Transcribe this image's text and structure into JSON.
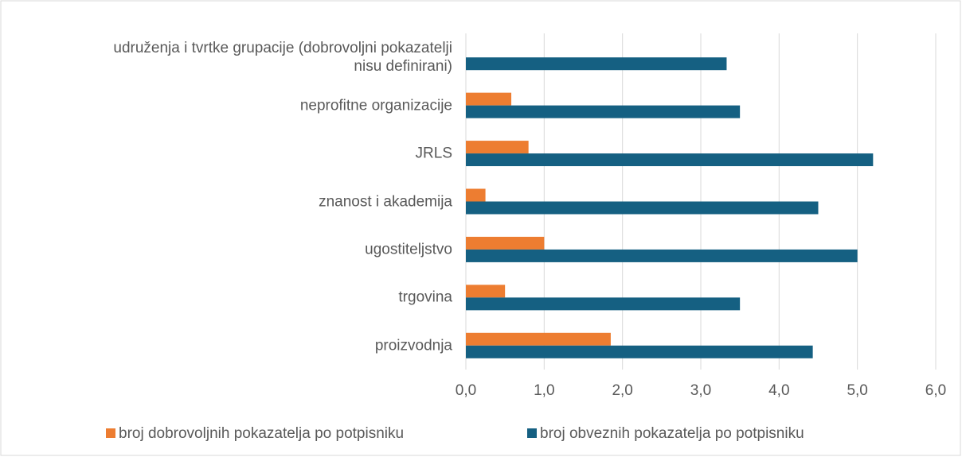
{
  "chart_data": {
    "type": "barh",
    "categories": [
      "udruženja i tvrtke grupacije (dobrovoljni pokazatelji\nnisu definirani)",
      "neprofitne organizacije",
      "JRLS",
      "znanost i akademija",
      "ugostiteljstvo",
      "trgovina",
      "proizvodnja"
    ],
    "series": [
      {
        "name": "broj dobrovoljnih pokazatelja po potpisniku",
        "color": "#ed7d31",
        "values": [
          null,
          0.58,
          0.8,
          0.25,
          1.0,
          0.5,
          1.85
        ]
      },
      {
        "name": "broj obveznih pokazatelja po potpisniku",
        "color": "#156082",
        "values": [
          3.33,
          3.5,
          5.2,
          4.5,
          5.0,
          3.5,
          4.43
        ]
      }
    ],
    "xlim": [
      0,
      6
    ],
    "xticks": [
      {
        "value": 0,
        "label": "0,0"
      },
      {
        "value": 1,
        "label": "1,0"
      },
      {
        "value": 2,
        "label": "2,0"
      },
      {
        "value": 3,
        "label": "3,0"
      },
      {
        "value": 4,
        "label": "4,0"
      },
      {
        "value": 5,
        "label": "5,0"
      },
      {
        "value": 6,
        "label": "6,0"
      }
    ],
    "grid": true,
    "legend": "bottom"
  }
}
